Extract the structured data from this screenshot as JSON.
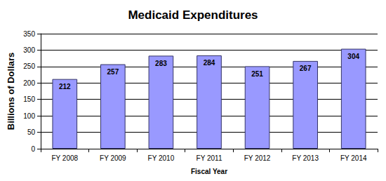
{
  "chart_data": {
    "type": "bar",
    "title": "Medicaid Expenditures",
    "xlabel": "Fiscal Year",
    "ylabel": "Billions of Dollars",
    "categories": [
      "FY 2008",
      "FY 2009",
      "FY 2010",
      "FY 2011",
      "FY 2012",
      "FY 2013",
      "FY 2014"
    ],
    "values": [
      212,
      257,
      283,
      284,
      251,
      267,
      304
    ],
    "color": "#9999ff",
    "ylim": [
      0,
      350
    ],
    "yticks": [
      0,
      50,
      100,
      150,
      200,
      250,
      300,
      350
    ],
    "grid": true,
    "data_labels": true
  }
}
